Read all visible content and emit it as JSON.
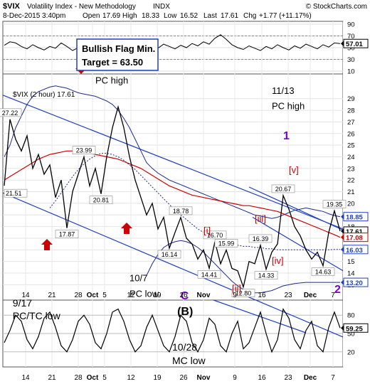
{
  "header": {
    "symbol": "$VIX",
    "name": "Volatility Index - New Methodology",
    "exchange": "INDX",
    "watermark": "© StockCharts.com",
    "date_line": "8-Dec-2015 3:40pm",
    "quote": {
      "open_label": "Open",
      "open": "17.69",
      "high_label": "High",
      "high": "18.33",
      "low_label": "Low",
      "low": "16.52",
      "last_label": "Last",
      "last": "17.61",
      "chg_label": "Chg",
      "chg": "+1.77 (+11.17%)"
    }
  },
  "colors": {
    "price": "#000000",
    "channel": "#1f3fbf",
    "ma_red": "#cc0000",
    "bollinger": "#1c2a8f",
    "wave_red": "#cc0000",
    "wave_purple": "#7a00cc",
    "label_box": "#1f3fbf",
    "tag_red": "#cc0000",
    "tag_blue": "#1f3fbf",
    "tag_black": "#000000"
  },
  "chart_data": [
    {
      "type": "line",
      "panel": "rsi-top",
      "ylim": [
        10,
        90
      ],
      "yticks": [
        "90",
        "70",
        "50",
        "30",
        "10"
      ],
      "last_value_tag": "57.01",
      "annotation_box": {
        "line1": "Bullish Flag Min.",
        "line2": "Target = 63.50"
      },
      "values": [
        54,
        60,
        58,
        52,
        48,
        55,
        50,
        46,
        52,
        49,
        58,
        52,
        45,
        50,
        48,
        44,
        51,
        47,
        53,
        49,
        46,
        52,
        48,
        55,
        50,
        47,
        53,
        49,
        56,
        52,
        48,
        54,
        50,
        57,
        53,
        60,
        56,
        66,
        72,
        64,
        55,
        50,
        47,
        53,
        49,
        45,
        52,
        48,
        55,
        50,
        46,
        53,
        49,
        56,
        52,
        48,
        55,
        51,
        58,
        57
      ]
    },
    {
      "type": "line",
      "panel": "price",
      "series_label": "$VIX (2 hour) 17.61",
      "ylim": [
        11.8,
        31
      ],
      "yticks": [
        "29",
        "28",
        "27",
        "26",
        "25",
        "24",
        "23",
        "22",
        "21",
        "20",
        "19",
        "18",
        "17",
        "16",
        "15",
        "14",
        "13"
      ],
      "x": [
        "Sep 14",
        "Sep 21",
        "Sep 28",
        "Oct 5",
        "Oct 12",
        "Oct 19",
        "Oct 26",
        "Nov 2",
        "Nov 9",
        "Nov 16",
        "Nov 23",
        "Nov 30",
        "Dec 7"
      ],
      "xtick_labels": [
        "14",
        "21",
        "28",
        "Oct",
        "5",
        "12",
        "19",
        "26",
        "Nov",
        "9",
        "16",
        "23",
        "Dec",
        "7"
      ],
      "price": [
        21.51,
        27.22,
        25.5,
        24.5,
        25.8,
        23.0,
        24.2,
        22.5,
        23.3,
        20.5,
        22.0,
        17.87,
        21.0,
        22.5,
        23.99,
        21.5,
        23.0,
        20.81,
        24.0,
        26.5,
        28.3,
        26.5,
        24.0,
        22.0,
        20.5,
        19.0,
        20.0,
        17.8,
        18.8,
        16.14,
        17.5,
        18.78,
        17.0,
        16.5,
        15.2,
        16.0,
        14.41,
        16.7,
        14.8,
        15.99,
        14.4,
        14.2,
        12.8,
        15.0,
        14.8,
        16.39,
        14.33,
        15.8,
        16.5,
        20.67,
        19.5,
        18.0,
        17.2,
        16.0,
        15.2,
        15.8,
        14.63,
        17.5,
        19.35,
        17.61
      ],
      "price_labels": [
        {
          "i": 0,
          "text": "21.51",
          "pos": "left"
        },
        {
          "i": 1,
          "text": "27.22",
          "pos": "up"
        },
        {
          "i": 11,
          "text": "17.87",
          "pos": "down"
        },
        {
          "i": 14,
          "text": "23.99",
          "pos": "up"
        },
        {
          "i": 17,
          "text": "20.81",
          "pos": "down"
        },
        {
          "i": 29,
          "text": "16.14",
          "pos": "down"
        },
        {
          "i": 31,
          "text": "18.78",
          "pos": "up"
        },
        {
          "i": 36,
          "text": "14.41",
          "pos": "down"
        },
        {
          "i": 37,
          "text": "16.70",
          "pos": "up"
        },
        {
          "i": 39,
          "text": "15.99",
          "pos": "up"
        },
        {
          "i": 42,
          "text": "12.80",
          "pos": "down"
        },
        {
          "i": 45,
          "text": "16.39",
          "pos": "up"
        },
        {
          "i": 46,
          "text": "14.33",
          "pos": "down"
        },
        {
          "i": 49,
          "text": "20.67",
          "pos": "up"
        },
        {
          "i": 56,
          "text": "14.63",
          "pos": "down"
        },
        {
          "i": 58,
          "text": "19.35",
          "pos": "up"
        }
      ],
      "ma_red": [
        22.0,
        22.3,
        22.6,
        22.9,
        23.2,
        23.5,
        23.8,
        24.0,
        24.2,
        24.3,
        24.4,
        24.5,
        24.5,
        24.5,
        24.4,
        24.3,
        24.2,
        24.1,
        24.0,
        23.9,
        23.8,
        23.6,
        23.4,
        23.2,
        23.0,
        22.7,
        22.4,
        22.1,
        21.8,
        21.5,
        21.3,
        21.1,
        20.9,
        20.7,
        20.6,
        20.5,
        20.4,
        20.3,
        20.2,
        20.1,
        20.0,
        19.9,
        19.8,
        19.8,
        19.7,
        19.6,
        19.5,
        19.4,
        19.3,
        19.1,
        18.9,
        18.7,
        18.5,
        18.3,
        18.1,
        17.9,
        17.7,
        17.5,
        17.3,
        17.08
      ],
      "bollinger_upper": [
        24.0,
        25.0,
        26.5,
        27.5,
        28.5,
        29.2,
        29.6,
        29.8,
        30.0,
        30.1,
        30.0,
        29.9,
        29.7,
        29.5,
        29.4,
        29.3,
        29.2,
        29.0,
        28.8,
        28.5,
        28.0,
        27.3,
        26.5,
        25.5,
        24.5,
        23.5,
        23.0,
        22.6,
        22.3,
        22.0,
        21.8,
        21.6,
        21.4,
        21.2,
        21.0,
        20.8,
        20.6,
        20.4,
        20.2,
        20.0,
        19.8,
        19.6,
        19.4,
        19.2,
        19.0,
        18.9,
        18.8,
        18.7,
        18.8,
        19.0,
        19.2,
        19.4,
        19.5,
        19.6,
        19.5,
        19.4,
        19.3,
        19.1,
        18.95,
        18.85
      ],
      "bollinger_lower": [
        null,
        null,
        null,
        null,
        null,
        null,
        null,
        null,
        null,
        null,
        null,
        null,
        null,
        null,
        null,
        null,
        null,
        null,
        null,
        null,
        null,
        null,
        null,
        null,
        null,
        13.8,
        14.8,
        15.6,
        16.2,
        16.5,
        16.7,
        16.8,
        16.7,
        16.5,
        16.2,
        15.8,
        15.3,
        14.8,
        14.3,
        13.8,
        13.3,
        12.9,
        12.6,
        12.4,
        12.3,
        12.3,
        12.4,
        12.5,
        12.7,
        12.9,
        13.0,
        13.1,
        13.15,
        13.2,
        13.2,
        13.2,
        13.2,
        13.2,
        13.2,
        13.2
      ],
      "ma_dotted": [
        null,
        null,
        null,
        null,
        null,
        null,
        null,
        null,
        19.6,
        20.2,
        20.9,
        21.6,
        22.3,
        22.9,
        23.4,
        23.8,
        24.1,
        24.3,
        24.3,
        24.2,
        24.0,
        23.7,
        23.3,
        22.9,
        22.4,
        21.9,
        21.4,
        20.9,
        20.4,
        19.9,
        19.4,
        19.0,
        18.6,
        18.2,
        17.8,
        17.5,
        17.2,
        16.9,
        16.7,
        16.6,
        16.5,
        16.4,
        16.3,
        16.3,
        16.2,
        16.2,
        16.1,
        16.1,
        16.0,
        16.0,
        16.0,
        16.0,
        16.0,
        16.0,
        16.0,
        16.0,
        16.0,
        16.0,
        16.03,
        16.03
      ],
      "last_value_tags": [
        {
          "text": "18.85",
          "value": 18.85,
          "color": "tag_blue"
        },
        {
          "text": "17.61",
          "value": 17.61,
          "color": "tag_black"
        },
        {
          "text": "17.08",
          "value": 17.08,
          "color": "tag_red"
        },
        {
          "text": "16.03",
          "value": 16.03,
          "color": "tag_blue"
        },
        {
          "text": "13.20",
          "value": 13.2,
          "color": "tag_blue"
        }
      ],
      "annotations": [
        {
          "text": "PC high",
          "i": 16,
          "v": 30.3,
          "color": "price"
        },
        {
          "text": "11/13",
          "i": 47,
          "v": 29.4,
          "color": "price"
        },
        {
          "text": "PC high",
          "i": 47,
          "v": 28.1,
          "color": "price"
        },
        {
          "text": "1",
          "i": 49,
          "v": 25.5,
          "color": "wave_purple",
          "big": true
        },
        {
          "text": "[v]",
          "i": 50,
          "v": 22.6,
          "color": "wave_red"
        },
        {
          "text": "[iii]",
          "i": 44,
          "v": 18.4,
          "color": "wave_red"
        },
        {
          "text": "[iv]",
          "i": 47,
          "v": 14.8,
          "color": "wave_red"
        },
        {
          "text": "[i]",
          "i": 35,
          "v": 17.4,
          "color": "wave_red"
        },
        {
          "text": "[ii]",
          "i": 40,
          "v": 12.4,
          "color": "wave_red"
        },
        {
          "text": "2",
          "i": 58,
          "v": 12.3,
          "color": "wave_purple",
          "big": true
        },
        {
          "text": "10/7",
          "i": 22,
          "v": 13.3,
          "color": "price"
        },
        {
          "text": "PC low",
          "i": 22,
          "v": 11.95,
          "color": "price"
        }
      ]
    },
    {
      "type": "line",
      "panel": "rsi-bottom",
      "ylim": [
        0,
        100
      ],
      "yticks": [
        "80",
        "50",
        "20"
      ],
      "last_value_tag": "59.25",
      "xtick_labels": [
        "14",
        "21",
        "28",
        "Oct",
        "5",
        "12",
        "19",
        "26",
        "Nov",
        "9",
        "16",
        "23",
        "Dec",
        "7"
      ],
      "values": [
        35,
        55,
        80,
        70,
        40,
        25,
        45,
        75,
        85,
        60,
        30,
        20,
        40,
        70,
        80,
        65,
        35,
        25,
        50,
        85,
        90,
        70,
        40,
        20,
        30,
        60,
        80,
        55,
        30,
        20,
        45,
        80,
        70,
        35,
        20,
        40,
        75,
        65,
        30,
        20,
        50,
        70,
        25,
        35,
        60,
        85,
        50,
        20,
        40,
        90,
        75,
        40,
        25,
        55,
        70,
        30,
        20,
        60,
        85,
        59
      ],
      "annotations": [
        {
          "text": "9/17",
          "fx": 0.025,
          "fy": 0.06
        },
        {
          "text": "PC/TC low",
          "fx": 0.025,
          "fy": 0.27
        },
        {
          "text": "C",
          "fx": 0.525,
          "fy": -0.06,
          "color": "wave_purple",
          "big": true
        },
        {
          "text": "(B)",
          "fx": 0.515,
          "fy": 0.2,
          "big": true
        },
        {
          "text": "10/28",
          "fx": 0.5,
          "fy": 0.78
        },
        {
          "text": "MC low",
          "fx": 0.5,
          "fy": 1.0
        }
      ]
    }
  ]
}
